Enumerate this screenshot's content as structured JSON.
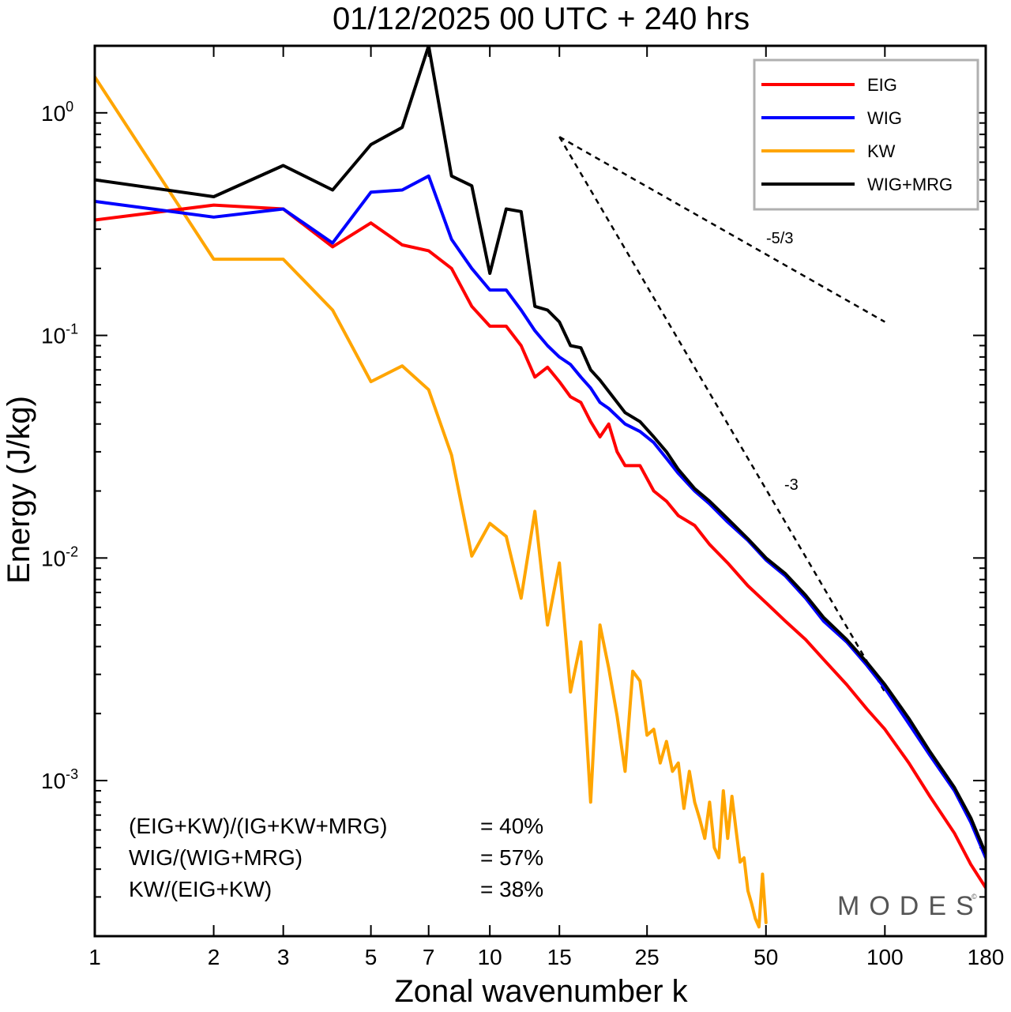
{
  "chart_data": {
    "type": "line",
    "title": "01/12/2025  00 UTC  + 240 hrs",
    "xlabel": "Zonal wavenumber k",
    "ylabel": "Energy (J/kg)",
    "xscale": "log",
    "yscale": "log",
    "xlim": [
      1,
      180
    ],
    "ylim": [
      0.0002,
      2.0
    ],
    "xticks": [
      1,
      2,
      3,
      5,
      7,
      10,
      15,
      25,
      50,
      100,
      180
    ],
    "xtick_labels": [
      "1",
      "2",
      "3",
      "5",
      "7",
      "10",
      "15",
      "25",
      "50",
      "100",
      "180"
    ],
    "yticks": [
      {
        "value": 1,
        "base": "10",
        "exp": "0"
      },
      {
        "value": 0.1,
        "base": "10",
        "exp": "-1"
      },
      {
        "value": 0.01,
        "base": "10",
        "exp": "-2"
      },
      {
        "value": 0.001,
        "base": "10",
        "exp": "-3"
      }
    ],
    "legend_position": "top-right",
    "series": [
      {
        "name": "EIG",
        "color": "#ff0000",
        "points": [
          [
            1,
            0.33
          ],
          [
            2,
            0.385
          ],
          [
            3,
            0.37
          ],
          [
            4,
            0.25
          ],
          [
            5,
            0.32
          ],
          [
            6,
            0.255
          ],
          [
            7,
            0.24
          ],
          [
            8,
            0.2
          ],
          [
            9,
            0.135
          ],
          [
            10,
            0.11
          ],
          [
            11,
            0.11
          ],
          [
            12,
            0.09
          ],
          [
            13,
            0.065
          ],
          [
            14,
            0.072
          ],
          [
            15,
            0.062
          ],
          [
            16,
            0.053
          ],
          [
            17,
            0.05
          ],
          [
            18,
            0.041
          ],
          [
            19,
            0.035
          ],
          [
            20,
            0.04
          ],
          [
            21,
            0.03
          ],
          [
            22,
            0.026
          ],
          [
            24,
            0.026
          ],
          [
            26,
            0.02
          ],
          [
            28,
            0.018
          ],
          [
            30,
            0.0155
          ],
          [
            33,
            0.014
          ],
          [
            36,
            0.0115
          ],
          [
            40,
            0.0095
          ],
          [
            45,
            0.0075
          ],
          [
            50,
            0.0063
          ],
          [
            56,
            0.0052
          ],
          [
            63,
            0.0043
          ],
          [
            70,
            0.0035
          ],
          [
            80,
            0.0027
          ],
          [
            90,
            0.0021
          ],
          [
            100,
            0.0017
          ],
          [
            115,
            0.0012
          ],
          [
            130,
            0.00085
          ],
          [
            150,
            0.00058
          ],
          [
            165,
            0.00042
          ],
          [
            180,
            0.00033
          ]
        ]
      },
      {
        "name": "WIG",
        "color": "#0000ff",
        "points": [
          [
            1,
            0.4
          ],
          [
            2,
            0.34
          ],
          [
            3,
            0.37
          ],
          [
            4,
            0.26
          ],
          [
            5,
            0.44
          ],
          [
            6,
            0.45
          ],
          [
            7,
            0.52
          ],
          [
            8,
            0.27
          ],
          [
            9,
            0.2
          ],
          [
            10,
            0.16
          ],
          [
            11,
            0.16
          ],
          [
            12,
            0.13
          ],
          [
            13,
            0.105
          ],
          [
            14,
            0.09
          ],
          [
            15,
            0.08
          ],
          [
            16,
            0.074
          ],
          [
            17,
            0.065
          ],
          [
            18,
            0.058
          ],
          [
            19,
            0.05
          ],
          [
            20,
            0.047
          ],
          [
            22,
            0.04
          ],
          [
            24,
            0.037
          ],
          [
            26,
            0.033
          ],
          [
            28,
            0.028
          ],
          [
            30,
            0.024
          ],
          [
            33,
            0.02
          ],
          [
            36,
            0.0175
          ],
          [
            40,
            0.0145
          ],
          [
            45,
            0.012
          ],
          [
            50,
            0.0098
          ],
          [
            56,
            0.0083
          ],
          [
            63,
            0.0066
          ],
          [
            70,
            0.0052
          ],
          [
            80,
            0.0042
          ],
          [
            90,
            0.0033
          ],
          [
            100,
            0.0026
          ],
          [
            115,
            0.0018
          ],
          [
            130,
            0.0013
          ],
          [
            150,
            0.0009
          ],
          [
            165,
            0.00065
          ],
          [
            180,
            0.00045
          ]
        ]
      },
      {
        "name": "KW",
        "color": "#ffa500",
        "points": [
          [
            1,
            1.45
          ],
          [
            2,
            0.22
          ],
          [
            3,
            0.22
          ],
          [
            4,
            0.13
          ],
          [
            5,
            0.062
          ],
          [
            6,
            0.073
          ],
          [
            7,
            0.057
          ],
          [
            8,
            0.029
          ],
          [
            9,
            0.0102
          ],
          [
            10,
            0.0143
          ],
          [
            11,
            0.0125
          ],
          [
            12,
            0.0066
          ],
          [
            13,
            0.0162
          ],
          [
            14,
            0.005
          ],
          [
            15,
            0.0095
          ],
          [
            16,
            0.0025
          ],
          [
            17,
            0.0042
          ],
          [
            18,
            0.0008
          ],
          [
            19,
            0.005
          ],
          [
            20,
            0.0032
          ],
          [
            21,
            0.00195
          ],
          [
            22,
            0.0011
          ],
          [
            23,
            0.0031
          ],
          [
            24,
            0.0028
          ],
          [
            25,
            0.0016
          ],
          [
            26,
            0.0017
          ],
          [
            27,
            0.0012
          ],
          [
            28,
            0.0015
          ],
          [
            29,
            0.0011
          ],
          [
            30,
            0.0012
          ],
          [
            31,
            0.00075
          ],
          [
            32,
            0.0011
          ],
          [
            33,
            0.0008
          ],
          [
            34,
            0.00067
          ],
          [
            35,
            0.00055
          ],
          [
            36,
            0.0008
          ],
          [
            37,
            0.0005
          ],
          [
            38,
            0.00045
          ],
          [
            39,
            0.0009
          ],
          [
            40,
            0.00055
          ],
          [
            41,
            0.00085
          ],
          [
            42,
            0.0006
          ],
          [
            43,
            0.00043
          ],
          [
            44,
            0.00045
          ],
          [
            45,
            0.00032
          ],
          [
            46,
            0.00028
          ],
          [
            47,
            0.00024
          ],
          [
            48,
            0.00022
          ],
          [
            49,
            0.00038
          ],
          [
            50,
            0.00023
          ]
        ]
      },
      {
        "name": "WIG+MRG",
        "color": "#000000",
        "points": [
          [
            1,
            0.5
          ],
          [
            2,
            0.42
          ],
          [
            3,
            0.58
          ],
          [
            4,
            0.45
          ],
          [
            5,
            0.72
          ],
          [
            6,
            0.86
          ],
          [
            7,
            2.0
          ],
          [
            8,
            0.52
          ],
          [
            9,
            0.47
          ],
          [
            10,
            0.19
          ],
          [
            11,
            0.37
          ],
          [
            12,
            0.36
          ],
          [
            13,
            0.135
          ],
          [
            14,
            0.13
          ],
          [
            15,
            0.115
          ],
          [
            16,
            0.09
          ],
          [
            17,
            0.088
          ],
          [
            18,
            0.07
          ],
          [
            19,
            0.063
          ],
          [
            20,
            0.056
          ],
          [
            22,
            0.045
          ],
          [
            24,
            0.041
          ],
          [
            26,
            0.035
          ],
          [
            28,
            0.03
          ],
          [
            30,
            0.025
          ],
          [
            33,
            0.0205
          ],
          [
            36,
            0.018
          ],
          [
            40,
            0.015
          ],
          [
            45,
            0.0122
          ],
          [
            50,
            0.01
          ],
          [
            56,
            0.0085
          ],
          [
            63,
            0.0068
          ],
          [
            70,
            0.0054
          ],
          [
            80,
            0.0043
          ],
          [
            90,
            0.0034
          ],
          [
            100,
            0.0027
          ],
          [
            115,
            0.0019
          ],
          [
            130,
            0.00135
          ],
          [
            150,
            0.00093
          ],
          [
            165,
            0.00068
          ],
          [
            180,
            0.00047
          ]
        ]
      }
    ],
    "reference_slopes": [
      {
        "label": "-5/3",
        "from": [
          15,
          0.78
        ],
        "to": [
          100,
          0.115
        ]
      },
      {
        "label": "-3",
        "from": [
          15,
          0.78
        ],
        "to": [
          100,
          0.0025
        ]
      }
    ],
    "annotations": [
      {
        "text": "(EIG+KW)/(IG+KW+MRG)",
        "value": "= 40%"
      },
      {
        "text": "WIG/(WIG+MRG)",
        "value": "= 57%"
      },
      {
        "text": "KW/(EIG+KW)",
        "value": "= 38%"
      }
    ],
    "watermark": "MODES",
    "copyright_mark": "©"
  }
}
